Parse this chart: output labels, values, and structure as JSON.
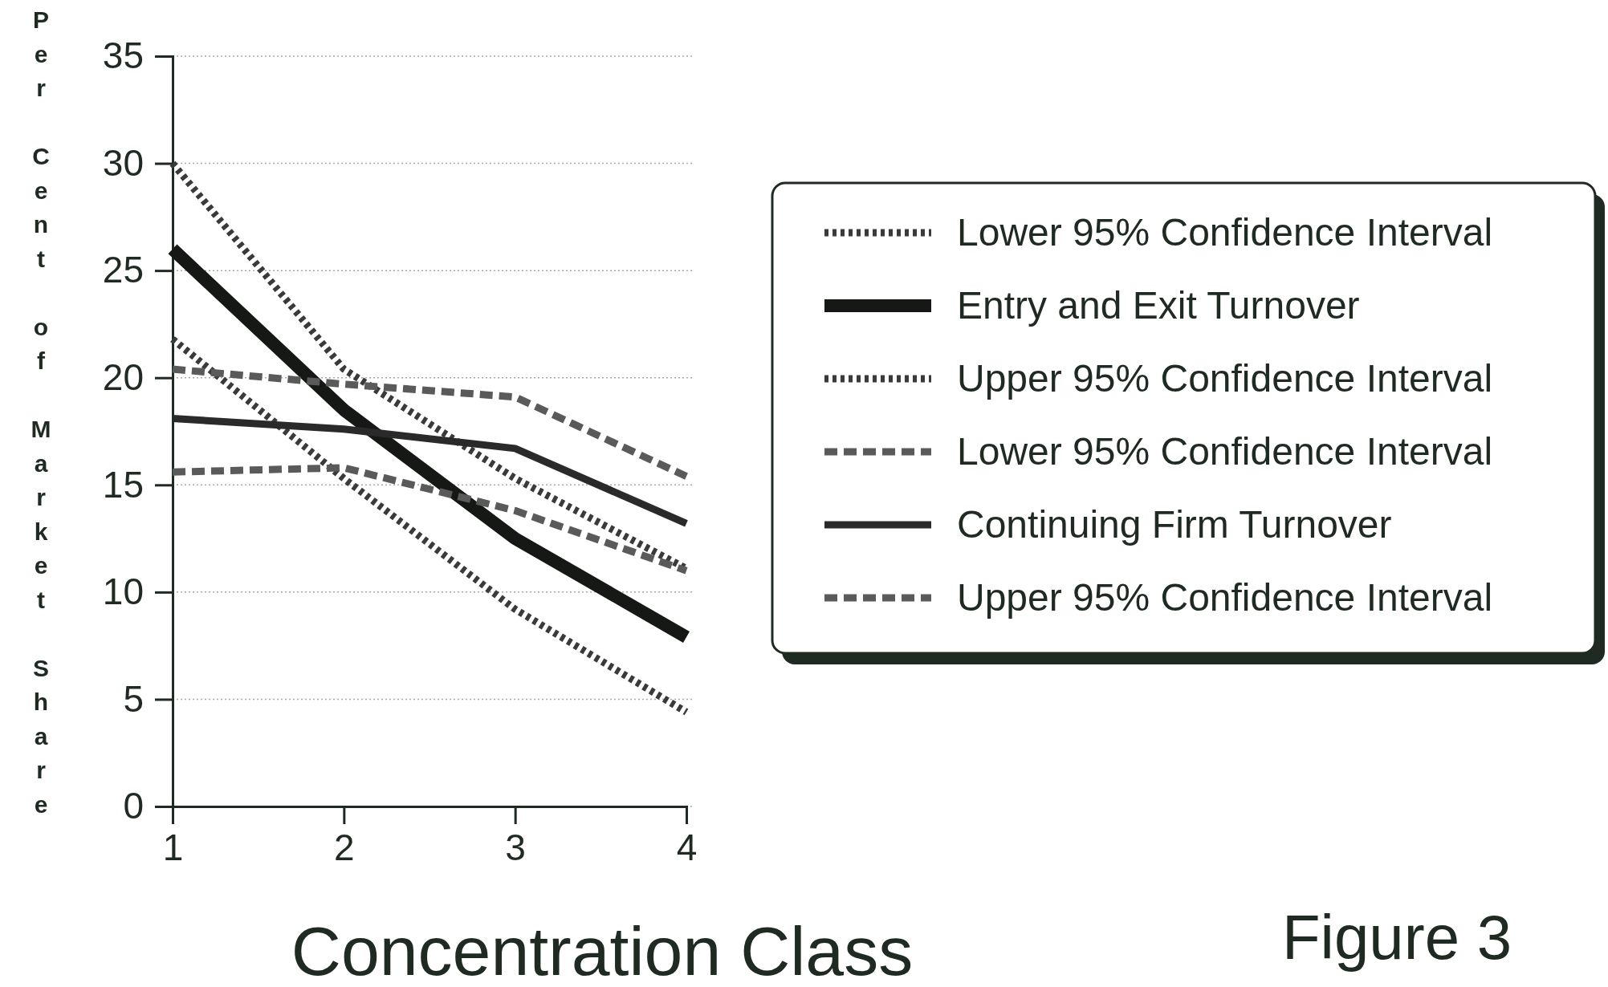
{
  "chart_data": {
    "type": "line",
    "xlabel": "Concentration Class",
    "ylabel": "Per Cent of Market Share",
    "annotations": [
      "Figure 3"
    ],
    "x": [
      1,
      2,
      3,
      4
    ],
    "xlim": [
      1,
      4
    ],
    "xticks": [
      1,
      2,
      3,
      4
    ],
    "ylim": [
      0,
      35
    ],
    "yticks": [
      0,
      5,
      10,
      15,
      20,
      25,
      30,
      35
    ],
    "grid": "y",
    "legend": "right",
    "marker": "none",
    "series": [
      {
        "name": "Lower 95% Confidence Interval",
        "color": "#3a3a3a",
        "line_style": "dotted",
        "values": [
          21.8,
          15.3,
          9.2,
          4.4
        ]
      },
      {
        "name": "Entry and Exit Turnover",
        "color": "#151815",
        "line_style": "solid",
        "values": [
          26.0,
          18.5,
          12.5,
          7.9
        ]
      },
      {
        "name": "Upper 95% Confidence Interval",
        "color": "#3a3a3a",
        "line_style": "dotted",
        "values": [
          30.0,
          20.4,
          15.3,
          11.1
        ]
      },
      {
        "name": "Lower 95% Confidence Interval",
        "color": "#5a5a5a",
        "line_style": "dashed",
        "values": [
          15.6,
          15.8,
          13.8,
          11.0
        ]
      },
      {
        "name": "Continuing Firm Turnover",
        "color": "#2a2a2a",
        "line_style": "solid",
        "values": [
          18.1,
          17.6,
          16.7,
          13.2
        ]
      },
      {
        "name": "Upper 95% Confidence Interval",
        "color": "#5a5a5a",
        "line_style": "dashed",
        "values": [
          20.4,
          19.7,
          19.1,
          15.4
        ]
      }
    ]
  }
}
